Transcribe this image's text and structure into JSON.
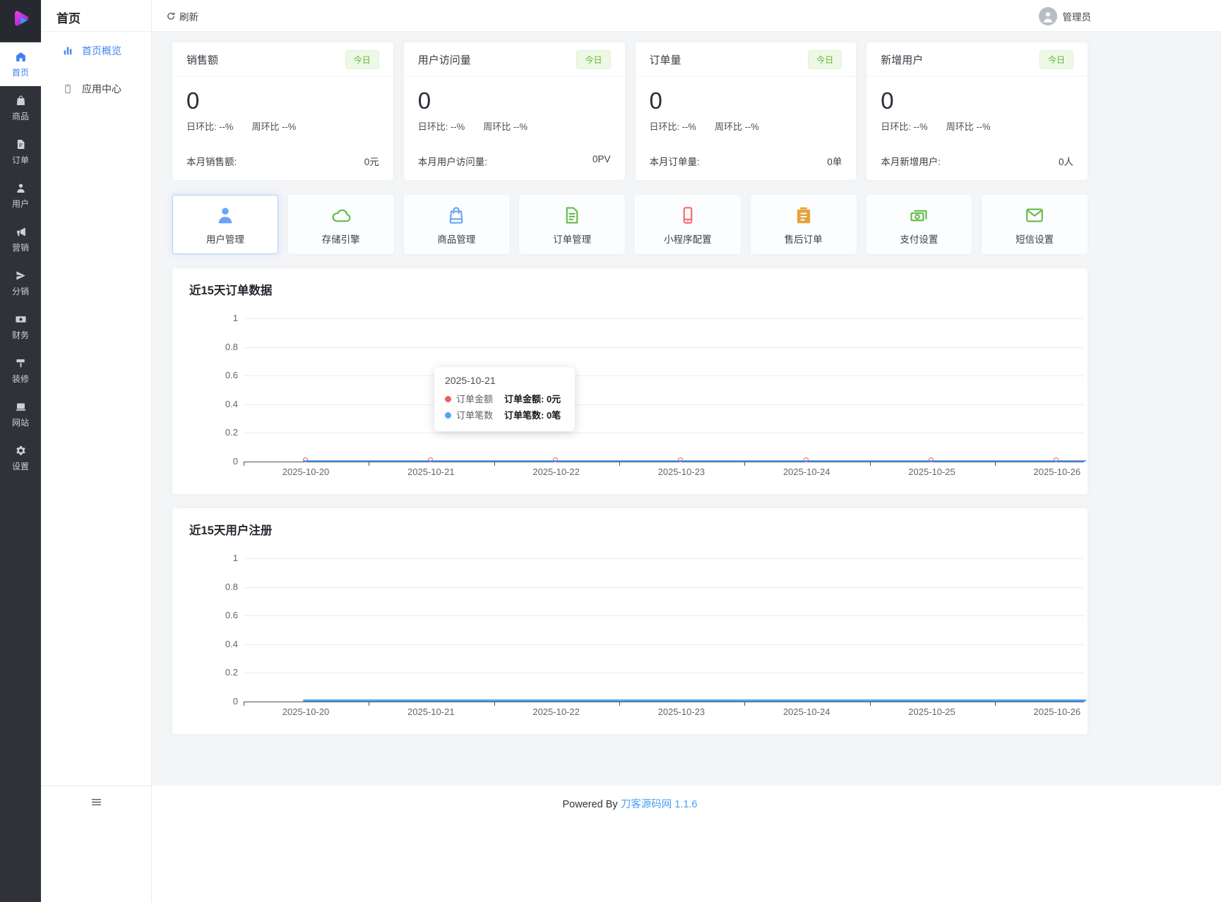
{
  "topbar": {
    "refresh_label": "刷新",
    "admin_label": "管理员"
  },
  "rail": {
    "items": [
      {
        "label": "首页",
        "icon": "home",
        "active": true
      },
      {
        "label": "商品",
        "icon": "goods",
        "active": false
      },
      {
        "label": "订单",
        "icon": "orders",
        "active": false
      },
      {
        "label": "用户",
        "icon": "user",
        "active": false
      },
      {
        "label": "营销",
        "icon": "marketing",
        "active": false
      },
      {
        "label": "分销",
        "icon": "plane",
        "active": false
      },
      {
        "label": "财务",
        "icon": "finance",
        "active": false
      },
      {
        "label": "装修",
        "icon": "paint",
        "active": false
      },
      {
        "label": "网站",
        "icon": "laptop",
        "active": false
      },
      {
        "label": "设置",
        "icon": "gear",
        "active": false
      }
    ]
  },
  "sidebar": {
    "title": "首页",
    "items": [
      {
        "label": "首页概览",
        "icon": "bars",
        "active": true
      },
      {
        "label": "应用中心",
        "icon": "app",
        "active": false
      }
    ]
  },
  "stats": [
    {
      "title": "销售额",
      "badge": "今日",
      "value": "0",
      "day": "日环比: --%",
      "week": "周环比 --%",
      "month_label": "本月销售额:",
      "month_value": "0元"
    },
    {
      "title": "用户访问量",
      "badge": "今日",
      "value": "0",
      "day": "日环比: --%",
      "week": "周环比 --%",
      "month_label": "本月用户访问量:",
      "month_value": "0PV"
    },
    {
      "title": "订单量",
      "badge": "今日",
      "value": "0",
      "day": "日环比: --%",
      "week": "周环比 --%",
      "month_label": "本月订单量:",
      "month_value": "0单"
    },
    {
      "title": "新增用户",
      "badge": "今日",
      "value": "0",
      "day": "日环比: --%",
      "week": "周环比 --%",
      "month_label": "本月新增用户:",
      "month_value": "0人"
    }
  ],
  "actions": [
    {
      "label": "用户管理",
      "icon": "user",
      "color": "#6aa3f8",
      "active": true
    },
    {
      "label": "存储引擎",
      "icon": "cloud",
      "color": "#62bb47",
      "active": false
    },
    {
      "label": "商品管理",
      "icon": "bag",
      "color": "#6aa3f8",
      "active": false
    },
    {
      "label": "订单管理",
      "icon": "doc",
      "color": "#62bb47",
      "active": false
    },
    {
      "label": "小程序配置",
      "icon": "phone",
      "color": "#f56c6c",
      "active": false
    },
    {
      "label": "售后订单",
      "icon": "clipboard",
      "color": "#e6a23c",
      "active": false
    },
    {
      "label": "支付设置",
      "icon": "money",
      "color": "#62bb47",
      "active": false
    },
    {
      "label": "短信设置",
      "icon": "mail",
      "color": "#62bb47",
      "active": false
    }
  ],
  "chart_data": [
    {
      "type": "line",
      "title": "近15天订单数据",
      "x": [
        "2025-10-20",
        "2025-10-21",
        "2025-10-22",
        "2025-10-23",
        "2025-10-24",
        "2025-10-25",
        "2025-10-26"
      ],
      "y_ticks": [
        "1",
        "0.8",
        "0.6",
        "0.4",
        "0.2",
        "0"
      ],
      "ylim": [
        0,
        1
      ],
      "grid": true,
      "legend_position": "none",
      "series": [
        {
          "name": "订单金额",
          "color": "#ee5f5f",
          "values": [
            0,
            0,
            0,
            0,
            0,
            0,
            0
          ],
          "markers": true,
          "width": 2
        },
        {
          "name": "订单笔数",
          "color": "#55a1f6",
          "values": [
            0,
            0,
            0,
            0,
            0,
            0,
            0
          ],
          "markers": false,
          "width": 2
        }
      ],
      "tooltip": {
        "date": "2025-10-21",
        "rows": [
          {
            "color": "#ee5f5f",
            "name": "订单金额",
            "value_label": "订单金额: 0元"
          },
          {
            "color": "#55a1f6",
            "name": "订单笔数",
            "value_label": "订单笔数: 0笔"
          }
        ]
      }
    },
    {
      "type": "line",
      "title": "近15天用户注册",
      "x": [
        "2025-10-20",
        "2025-10-21",
        "2025-10-22",
        "2025-10-23",
        "2025-10-24",
        "2025-10-25",
        "2025-10-26"
      ],
      "y_ticks": [
        "1",
        "0.8",
        "0.6",
        "0.4",
        "0.2",
        "0"
      ],
      "ylim": [
        0,
        1
      ],
      "grid": true,
      "legend_position": "none",
      "series": [
        {
          "name": "用户注册",
          "color": "#55a1f6",
          "values": [
            0,
            0,
            0,
            0,
            0,
            0,
            0
          ],
          "markers": false,
          "width": 3
        }
      ]
    }
  ],
  "footer": {
    "powered_by": "Powered By",
    "brand": "刀客源码网",
    "version": "1.1.6"
  }
}
